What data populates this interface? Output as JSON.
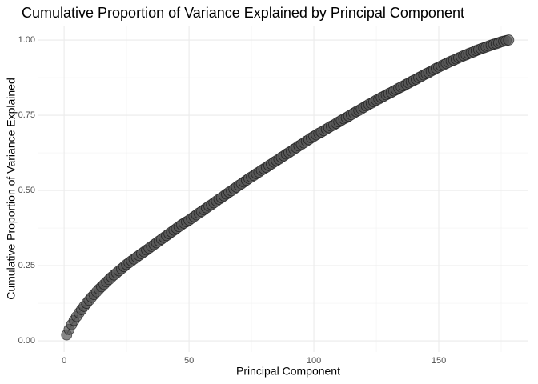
{
  "chart_data": {
    "type": "line-points",
    "title": "Cumulative Proportion of Variance Explained by Principal Component",
    "x_label": "Principal Component",
    "y_label": "Cumulative Proportion of Variance Explained",
    "x": [
      1,
      2,
      3,
      4,
      5,
      6,
      7,
      8,
      9,
      10,
      11,
      12,
      13,
      14,
      15,
      16,
      17,
      18,
      19,
      20,
      21,
      22,
      23,
      24,
      25,
      26,
      27,
      28,
      29,
      30,
      31,
      32,
      33,
      34,
      35,
      36,
      37,
      38,
      39,
      40,
      41,
      42,
      43,
      44,
      45,
      46,
      47,
      48,
      49,
      50,
      51,
      52,
      53,
      54,
      55,
      56,
      57,
      58,
      59,
      60,
      61,
      62,
      63,
      64,
      65,
      66,
      67,
      68,
      69,
      70,
      71,
      72,
      73,
      74,
      75,
      76,
      77,
      78,
      79,
      80,
      81,
      82,
      83,
      84,
      85,
      86,
      87,
      88,
      89,
      90,
      91,
      92,
      93,
      94,
      95,
      96,
      97,
      98,
      99,
      100,
      101,
      102,
      103,
      104,
      105,
      106,
      107,
      108,
      109,
      110,
      111,
      112,
      113,
      114,
      115,
      116,
      117,
      118,
      119,
      120,
      121,
      122,
      123,
      124,
      125,
      126,
      127,
      128,
      129,
      130,
      131,
      132,
      133,
      134,
      135,
      136,
      137,
      138,
      139,
      140,
      141,
      142,
      143,
      144,
      145,
      146,
      147,
      148,
      149,
      150,
      151,
      152,
      153,
      154,
      155,
      156,
      157,
      158,
      159,
      160,
      161,
      162,
      163,
      164,
      165,
      166,
      167,
      168,
      169,
      170,
      171,
      172,
      173,
      174,
      175,
      176,
      177,
      178
    ],
    "values": [
      0.02,
      0.038,
      0.054,
      0.068,
      0.081,
      0.093,
      0.104,
      0.115,
      0.125,
      0.135,
      0.145,
      0.154,
      0.163,
      0.172,
      0.18,
      0.188,
      0.196,
      0.204,
      0.212,
      0.219,
      0.226,
      0.233,
      0.24,
      0.247,
      0.254,
      0.26,
      0.266,
      0.272,
      0.278,
      0.284,
      0.29,
      0.296,
      0.302,
      0.308,
      0.314,
      0.32,
      0.326,
      0.332,
      0.338,
      0.344,
      0.35,
      0.356,
      0.362,
      0.368,
      0.374,
      0.38,
      0.386,
      0.391,
      0.396,
      0.401,
      0.407,
      0.413,
      0.419,
      0.425,
      0.43,
      0.436,
      0.442,
      0.448,
      0.453,
      0.459,
      0.465,
      0.471,
      0.476,
      0.482,
      0.488,
      0.494,
      0.499,
      0.505,
      0.511,
      0.517,
      0.522,
      0.528,
      0.534,
      0.54,
      0.545,
      0.55,
      0.556,
      0.561,
      0.567,
      0.572,
      0.577,
      0.583,
      0.588,
      0.594,
      0.599,
      0.604,
      0.61,
      0.615,
      0.621,
      0.626,
      0.631,
      0.637,
      0.642,
      0.648,
      0.653,
      0.658,
      0.664,
      0.669,
      0.675,
      0.68,
      0.685,
      0.69,
      0.694,
      0.699,
      0.704,
      0.709,
      0.714,
      0.718,
      0.723,
      0.728,
      0.733,
      0.738,
      0.742,
      0.747,
      0.752,
      0.757,
      0.762,
      0.766,
      0.771,
      0.776,
      0.781,
      0.786,
      0.79,
      0.795,
      0.8,
      0.804,
      0.809,
      0.813,
      0.818,
      0.822,
      0.826,
      0.831,
      0.835,
      0.84,
      0.844,
      0.848,
      0.853,
      0.857,
      0.862,
      0.866,
      0.87,
      0.875,
      0.879,
      0.884,
      0.888,
      0.892,
      0.897,
      0.901,
      0.906,
      0.91,
      0.914,
      0.918,
      0.922,
      0.926,
      0.93,
      0.933,
      0.937,
      0.941,
      0.944,
      0.948,
      0.951,
      0.955,
      0.958,
      0.961,
      0.965,
      0.968,
      0.971,
      0.974,
      0.977,
      0.98,
      0.983,
      0.986,
      0.988,
      0.991,
      0.994,
      0.996,
      0.998,
      1.0
    ],
    "color": "#000000",
    "point_fill": "#555555",
    "xlim": [
      -10.3,
      185.9
    ],
    "ylim": [
      -0.037,
      1.048
    ],
    "xticks": [
      0,
      50,
      100,
      150
    ],
    "yticks": [
      {
        "value": 0,
        "label": "0.00"
      },
      {
        "value": 0.25,
        "label": "0.25"
      },
      {
        "value": 0.5,
        "label": "0.50"
      },
      {
        "value": 0.75,
        "label": "0.75"
      },
      {
        "value": 1,
        "label": "1.00"
      }
    ],
    "grid": true
  }
}
